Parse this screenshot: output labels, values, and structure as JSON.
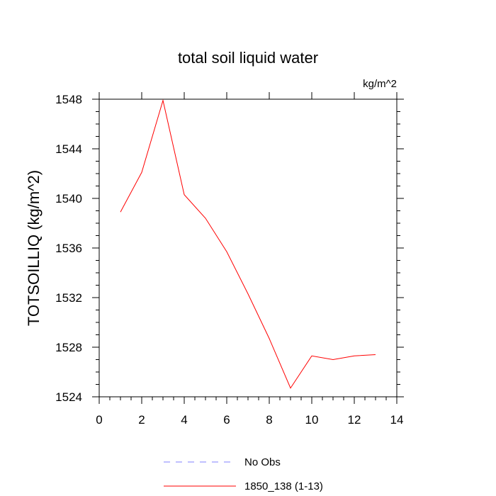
{
  "chart_data": {
    "type": "line",
    "title": "total soil liquid water",
    "units_label": "kg/m^2",
    "xlabel": "",
    "ylabel": "TOTSOILLIQ  (kg/m^2)",
    "xlim": [
      0,
      14
    ],
    "ylim": [
      1524,
      1548
    ],
    "x_ticks": [
      "0",
      "2",
      "4",
      "6",
      "8",
      "10",
      "12",
      "14"
    ],
    "y_ticks": [
      "1524",
      "1528",
      "1532",
      "1536",
      "1540",
      "1544",
      "1548"
    ],
    "grid": false,
    "legend_position": "bottom",
    "series": [
      {
        "name": "No Obs",
        "color": "#8080ff",
        "style": "dashed",
        "x": [],
        "y": []
      },
      {
        "name": "1850_138 (1-13)",
        "color": "#ff0000",
        "style": "solid",
        "x": [
          1,
          2,
          3,
          4,
          5,
          6,
          7,
          8,
          9,
          10,
          11,
          12,
          13
        ],
        "y": [
          1538.9,
          1542.1,
          1547.9,
          1540.3,
          1538.4,
          1535.7,
          1532.3,
          1528.7,
          1524.7,
          1527.3,
          1527.0,
          1527.3,
          1527.4
        ]
      }
    ]
  }
}
